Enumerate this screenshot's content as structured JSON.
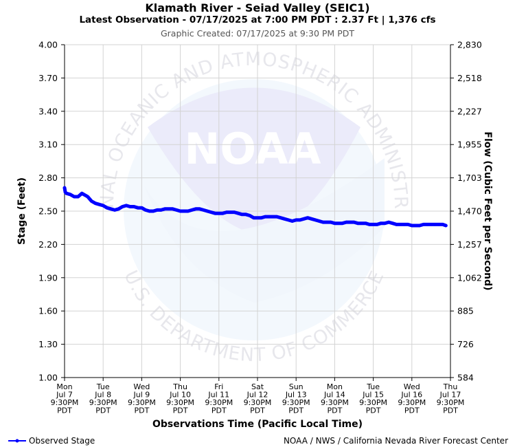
{
  "header": {
    "title": "Klamath River - Seiad Valley (SEIC1)",
    "subtitle": "Latest Observation - 07/17/2025 at 7:00 PM PDT : 2.37 Ft | 1,376 cfs",
    "created": "Graphic Created: 07/17/2025 at 9:30 PM PDT"
  },
  "watermark": {
    "logo_text": "NOAA",
    "ring_top": "NATIONAL OCEANIC AND ATMOSPHERIC ADMINISTRATION",
    "ring_bottom": "U.S. DEPARTMENT OF COMMERCE"
  },
  "legend": {
    "label": "Observed Stage",
    "color": "#0000ff"
  },
  "credit": "NOAA / NWS / California Nevada River Forecast Center",
  "chart_data": {
    "type": "line",
    "xlabel": "Observations Time (Pacific Local Time)",
    "ylabel": "Stage (Feet)",
    "y2label": "Flow (Cubic Feet per Second)",
    "ylim": [
      1.0,
      4.0
    ],
    "xlim": [
      0,
      10
    ],
    "yticks": [
      "4.00",
      "3.70",
      "3.40",
      "3.10",
      "2.80",
      "2.50",
      "2.20",
      "1.90",
      "1.60",
      "1.30",
      "1.00"
    ],
    "y2ticks": [
      "2,830",
      "2,518",
      "2,227",
      "1,955",
      "1,703",
      "1,470",
      "1,257",
      "1,062",
      "885",
      "726",
      "584"
    ],
    "xticks": [
      [
        "Mon",
        "Jul 7",
        "9:30PM",
        "PDT"
      ],
      [
        "Tue",
        "Jul 8",
        "9:30PM",
        "PDT"
      ],
      [
        "Wed",
        "Jul 9",
        "9:30PM",
        "PDT"
      ],
      [
        "Thu",
        "Jul 10",
        "9:30PM",
        "PDT"
      ],
      [
        "Fri",
        "Jul 11",
        "9:30PM",
        "PDT"
      ],
      [
        "Sat",
        "Jul 12",
        "9:30PM",
        "PDT"
      ],
      [
        "Sun",
        "Jul 13",
        "9:30PM",
        "PDT"
      ],
      [
        "Mon",
        "Jul 14",
        "9:30PM",
        "PDT"
      ],
      [
        "Tue",
        "Jul 15",
        "9:30PM",
        "PDT"
      ],
      [
        "Wed",
        "Jul 16",
        "9:30PM",
        "PDT"
      ],
      [
        "Thu",
        "Jul 17",
        "9:30PM",
        "PDT"
      ]
    ],
    "grid": true,
    "series": [
      {
        "name": "Observed Stage",
        "color": "#0000ff",
        "x": [
          0.0,
          0.02,
          0.05,
          0.15,
          0.25,
          0.35,
          0.45,
          0.5,
          0.6,
          0.7,
          0.8,
          0.9,
          1.0,
          1.1,
          1.2,
          1.3,
          1.4,
          1.5,
          1.6,
          1.7,
          1.8,
          1.9,
          2.0,
          2.1,
          2.2,
          2.3,
          2.4,
          2.5,
          2.6,
          2.7,
          2.8,
          2.9,
          3.0,
          3.1,
          3.2,
          3.3,
          3.4,
          3.5,
          3.6,
          3.7,
          3.8,
          3.9,
          4.0,
          4.1,
          4.2,
          4.3,
          4.4,
          4.5,
          4.6,
          4.7,
          4.8,
          4.9,
          5.0,
          5.1,
          5.2,
          5.3,
          5.4,
          5.5,
          5.6,
          5.7,
          5.8,
          5.9,
          6.0,
          6.1,
          6.2,
          6.3,
          6.4,
          6.5,
          6.6,
          6.7,
          6.8,
          6.9,
          7.0,
          7.1,
          7.2,
          7.3,
          7.4,
          7.5,
          7.6,
          7.7,
          7.8,
          7.9,
          8.0,
          8.1,
          8.2,
          8.3,
          8.4,
          8.5,
          8.6,
          8.7,
          8.8,
          8.9,
          9.0,
          9.1,
          9.2,
          9.3,
          9.4,
          9.5,
          9.6,
          9.7,
          9.8,
          9.88
        ],
        "y": [
          2.71,
          2.67,
          2.66,
          2.65,
          2.63,
          2.63,
          2.66,
          2.65,
          2.63,
          2.59,
          2.57,
          2.56,
          2.55,
          2.53,
          2.52,
          2.51,
          2.52,
          2.54,
          2.55,
          2.54,
          2.54,
          2.53,
          2.53,
          2.51,
          2.5,
          2.5,
          2.51,
          2.51,
          2.52,
          2.52,
          2.52,
          2.51,
          2.5,
          2.5,
          2.5,
          2.51,
          2.52,
          2.52,
          2.51,
          2.5,
          2.49,
          2.48,
          2.48,
          2.48,
          2.49,
          2.49,
          2.49,
          2.48,
          2.47,
          2.47,
          2.46,
          2.44,
          2.44,
          2.44,
          2.45,
          2.45,
          2.45,
          2.45,
          2.44,
          2.43,
          2.42,
          2.41,
          2.42,
          2.42,
          2.43,
          2.44,
          2.43,
          2.42,
          2.41,
          2.4,
          2.4,
          2.4,
          2.39,
          2.39,
          2.39,
          2.4,
          2.4,
          2.4,
          2.39,
          2.39,
          2.39,
          2.38,
          2.38,
          2.38,
          2.39,
          2.39,
          2.4,
          2.39,
          2.38,
          2.38,
          2.38,
          2.38,
          2.37,
          2.37,
          2.37,
          2.38,
          2.38,
          2.38,
          2.38,
          2.38,
          2.38,
          2.37
        ]
      }
    ]
  }
}
